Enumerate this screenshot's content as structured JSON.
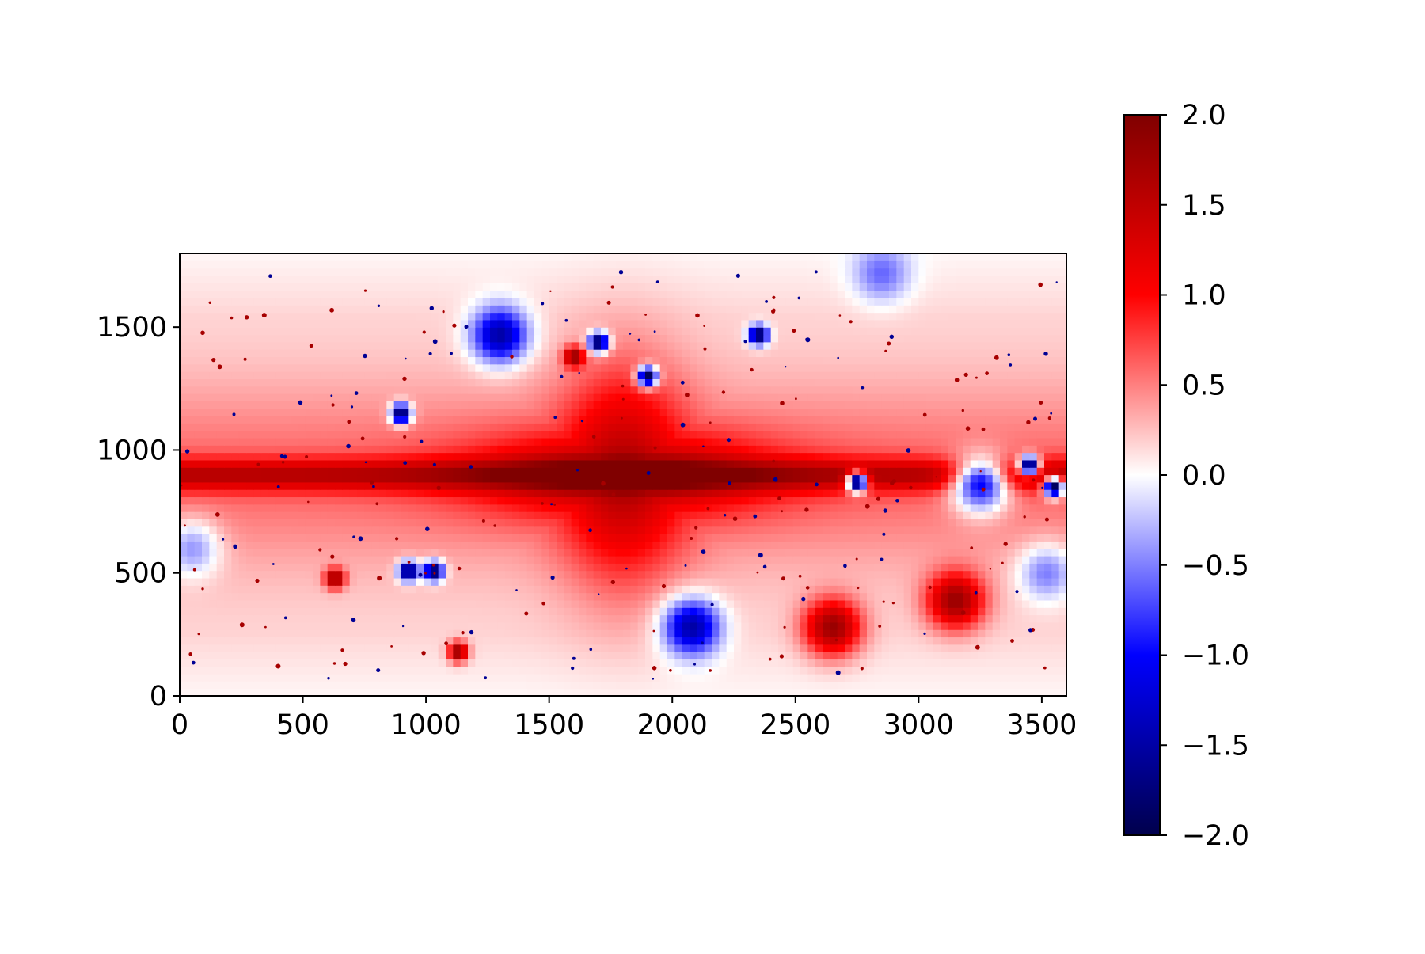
{
  "chart_data": {
    "type": "heatmap",
    "title": "",
    "xlabel": "",
    "ylabel": "",
    "xlim": [
      0,
      3600
    ],
    "ylim": [
      0,
      1800
    ],
    "x_ticks": [
      0,
      500,
      1000,
      1500,
      2000,
      2500,
      3000,
      3500
    ],
    "x_tick_labels": [
      "0",
      "500",
      "1000",
      "1500",
      "2000",
      "2500",
      "3000",
      "3500"
    ],
    "y_ticks": [
      0,
      500,
      1000,
      1500
    ],
    "y_tick_labels": [
      "0",
      "500",
      "1000",
      "1500"
    ],
    "grid": false,
    "colormap": "seismic",
    "colorbar": {
      "range": [
        -2.0,
        2.0
      ],
      "ticks": [
        2.0,
        1.5,
        1.0,
        0.5,
        0.0,
        -0.5,
        -1.0,
        -1.5,
        -2.0
      ],
      "tick_labels": [
        "2.0",
        "1.5",
        "1.0",
        "0.5",
        "0.0",
        "−0.5",
        "−1.0",
        "−1.5",
        "−2.0"
      ]
    },
    "colors": {
      "min": "#00004c",
      "neg": "#0000ff",
      "zero": "#ffffff",
      "pos": "#ff0000",
      "max": "#800000"
    },
    "features": {
      "background_level": 0.15,
      "plane_center_y": 900,
      "plane_level": 1.3,
      "bulge_center": [
        1800,
        900
      ],
      "bulge_level": 1.9,
      "blue_regions": [
        {
          "x": 3250,
          "y": 860,
          "value": -1.0
        },
        {
          "x": 3450,
          "y": 940,
          "value": -2.0
        },
        {
          "x": 3550,
          "y": 850,
          "value": -2.0
        },
        {
          "x": 930,
          "y": 510,
          "value": -2.0
        },
        {
          "x": 1030,
          "y": 510,
          "value": -2.0
        },
        {
          "x": 900,
          "y": 1150,
          "value": -2.0
        },
        {
          "x": 1900,
          "y": 1300,
          "value": -2.0
        },
        {
          "x": 1700,
          "y": 1440,
          "value": -2.0
        },
        {
          "x": 2350,
          "y": 1470,
          "value": -2.0
        },
        {
          "x": 2750,
          "y": 870,
          "value": -2.0
        },
        {
          "x": 1300,
          "y": 1470,
          "value": -1.5
        },
        {
          "x": 2850,
          "y": 1720,
          "value": -0.6
        },
        {
          "x": 50,
          "y": 600,
          "value": -0.4
        },
        {
          "x": 3520,
          "y": 500,
          "value": -0.5
        },
        {
          "x": 2080,
          "y": 280,
          "value": -1.5
        }
      ],
      "red_spots": [
        {
          "x": 3150,
          "y": 390,
          "value": 1.8
        },
        {
          "x": 630,
          "y": 480,
          "value": 1.9
        },
        {
          "x": 2650,
          "y": 280,
          "value": 1.8
        },
        {
          "x": 1130,
          "y": 180,
          "value": 1.9
        },
        {
          "x": 1600,
          "y": 1380,
          "value": 1.9
        }
      ]
    }
  }
}
